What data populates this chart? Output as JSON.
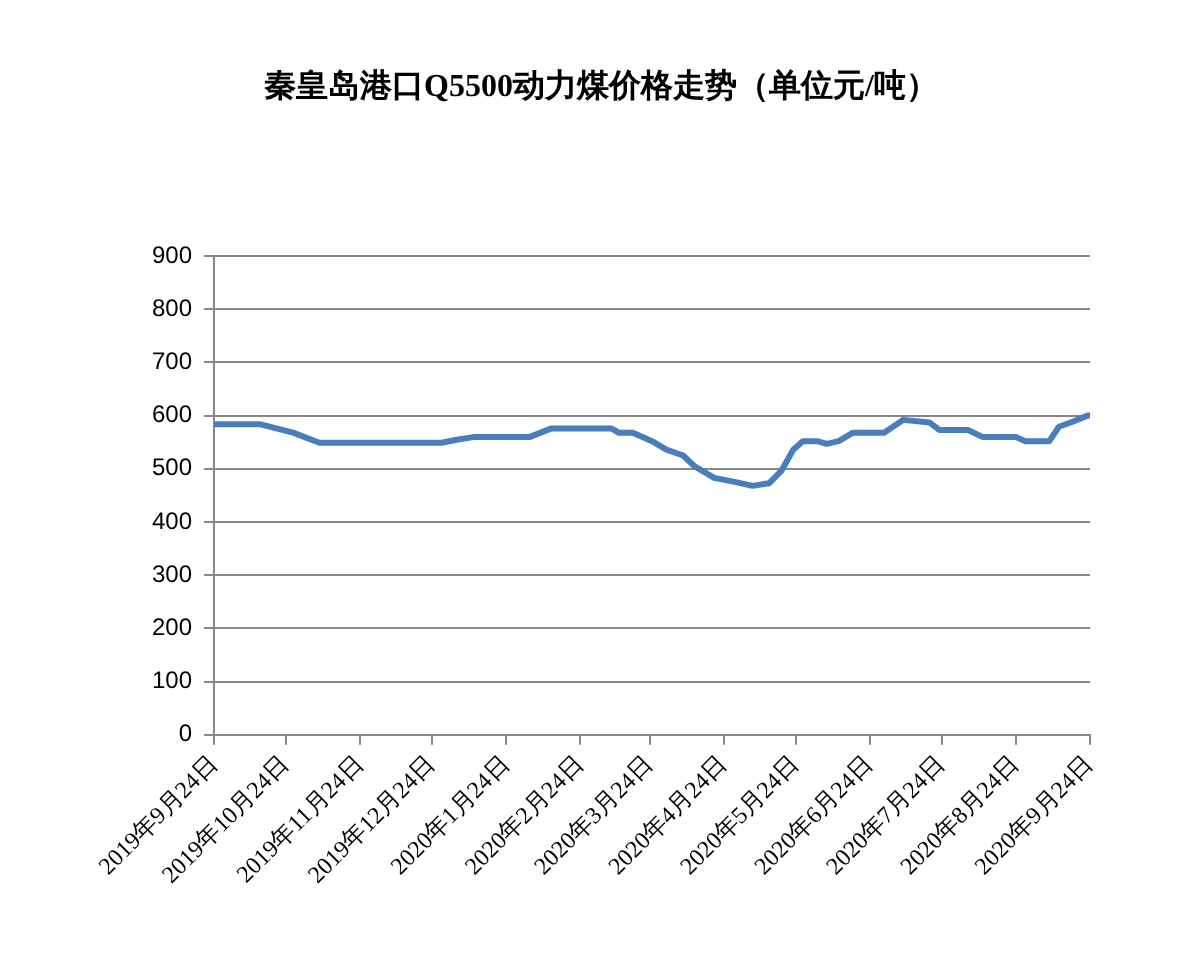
{
  "chart_data": {
    "type": "line",
    "title": "秦皇岛港口Q5500动力煤价格走势（单位元/吨）",
    "x": [
      "2019-09-24",
      "2019-10-13",
      "2019-10-27",
      "2019-11-07",
      "2019-12-28",
      "2020-01-04",
      "2020-01-11",
      "2020-02-03",
      "2020-02-12",
      "2020-03-08",
      "2020-03-11",
      "2020-03-17",
      "2020-03-25",
      "2020-03-31",
      "2020-04-07",
      "2020-04-12",
      "2020-04-20",
      "2020-04-29",
      "2020-05-06",
      "2020-05-13",
      "2020-05-18",
      "2020-05-23",
      "2020-05-27",
      "2020-06-02",
      "2020-06-06",
      "2020-06-11",
      "2020-06-17",
      "2020-06-30",
      "2020-07-08",
      "2020-07-19",
      "2020-07-23",
      "2020-08-04",
      "2020-08-10",
      "2020-08-24",
      "2020-08-28",
      "2020-09-07",
      "2020-09-11",
      "2020-09-17",
      "2020-09-23",
      "2020-09-24"
    ],
    "series": [
      {
        "color": "#4a7ebb",
        "values": [
          584,
          584,
          568,
          549,
          549,
          555,
          560,
          560,
          576,
          576,
          568,
          568,
          552,
          536,
          525,
          504,
          483,
          475,
          468,
          473,
          496,
          536,
          552,
          552,
          547,
          552,
          568,
          568,
          592,
          587,
          573,
          573,
          560,
          560,
          552,
          552,
          579,
          589,
          600,
          600
        ]
      }
    ],
    "xlim": [
      "2019-09-24",
      "2020-09-24"
    ],
    "xticks": [
      {
        "value": "2019-09-24",
        "label": "2019年9月24日"
      },
      {
        "value": "2019-10-24",
        "label": "2019年10月24日"
      },
      {
        "value": "2019-11-24",
        "label": "2019年11月24日"
      },
      {
        "value": "2019-12-24",
        "label": "2019年12月24日"
      },
      {
        "value": "2020-01-24",
        "label": "2020年1月24日"
      },
      {
        "value": "2020-02-24",
        "label": "2020年2月24日"
      },
      {
        "value": "2020-03-24",
        "label": "2020年3月24日"
      },
      {
        "value": "2020-04-24",
        "label": "2020年4月24日"
      },
      {
        "value": "2020-05-24",
        "label": "2020年5月24日"
      },
      {
        "value": "2020-06-24",
        "label": "2020年6月24日"
      },
      {
        "value": "2020-07-24",
        "label": "2020年7月24日"
      },
      {
        "value": "2020-08-24",
        "label": "2020年8月24日"
      },
      {
        "value": "2020-09-24",
        "label": "2020年9月24日"
      }
    ],
    "ylim": [
      0,
      900
    ],
    "yticks": [
      0,
      100,
      200,
      300,
      400,
      500,
      600,
      700,
      800,
      900
    ],
    "grid": "y",
    "legend": false,
    "marker": "none",
    "line_style": "solid"
  }
}
